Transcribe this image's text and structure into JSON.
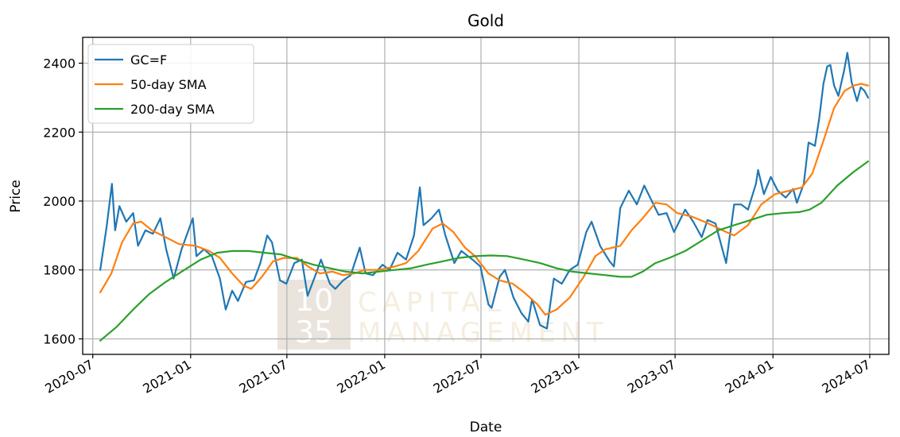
{
  "chart_data": {
    "type": "line",
    "title": "Gold",
    "xlabel": "Date",
    "ylabel": "Price",
    "x_tick_labels": [
      "2020-07",
      "2021-01",
      "2021-07",
      "2022-01",
      "2022-07",
      "2023-01",
      "2023-07",
      "2024-01",
      "2024-07"
    ],
    "y_ticks": [
      1600,
      1800,
      2000,
      2200,
      2400
    ],
    "xlim": [
      "2020-06-12",
      "2024-08-06"
    ],
    "ylim": [
      1555,
      2475
    ],
    "grid": true,
    "legend_position": "upper-left",
    "watermark": {
      "number": [
        "10",
        "35"
      ],
      "words": [
        "CAPITAL",
        "MANAGEMENT"
      ]
    },
    "series": [
      {
        "name": "GC=F",
        "color": "#1f77b4",
        "points": [
          [
            "2020-07-15",
            1800
          ],
          [
            "2020-07-27",
            1925
          ],
          [
            "2020-08-06",
            2050
          ],
          [
            "2020-08-12",
            1915
          ],
          [
            "2020-08-20",
            1985
          ],
          [
            "2020-09-02",
            1940
          ],
          [
            "2020-09-15",
            1965
          ],
          [
            "2020-09-24",
            1870
          ],
          [
            "2020-10-08",
            1915
          ],
          [
            "2020-10-22",
            1905
          ],
          [
            "2020-11-05",
            1950
          ],
          [
            "2020-11-16",
            1860
          ],
          [
            "2020-11-30",
            1775
          ],
          [
            "2020-12-15",
            1860
          ],
          [
            "2021-01-05",
            1950
          ],
          [
            "2021-01-12",
            1840
          ],
          [
            "2021-01-26",
            1860
          ],
          [
            "2021-02-10",
            1840
          ],
          [
            "2021-02-25",
            1775
          ],
          [
            "2021-03-08",
            1685
          ],
          [
            "2021-03-20",
            1740
          ],
          [
            "2021-03-31",
            1710
          ],
          [
            "2021-04-15",
            1765
          ],
          [
            "2021-04-30",
            1770
          ],
          [
            "2021-05-12",
            1820
          ],
          [
            "2021-05-25",
            1900
          ],
          [
            "2021-06-03",
            1880
          ],
          [
            "2021-06-18",
            1770
          ],
          [
            "2021-06-30",
            1760
          ],
          [
            "2021-07-15",
            1820
          ],
          [
            "2021-07-29",
            1830
          ],
          [
            "2021-08-09",
            1725
          ],
          [
            "2021-08-25",
            1790
          ],
          [
            "2021-09-03",
            1830
          ],
          [
            "2021-09-20",
            1760
          ],
          [
            "2021-09-30",
            1745
          ],
          [
            "2021-10-15",
            1770
          ],
          [
            "2021-10-29",
            1785
          ],
          [
            "2021-11-15",
            1865
          ],
          [
            "2021-11-26",
            1790
          ],
          [
            "2021-12-10",
            1785
          ],
          [
            "2021-12-28",
            1815
          ],
          [
            "2022-01-10",
            1800
          ],
          [
            "2022-01-25",
            1850
          ],
          [
            "2022-02-10",
            1830
          ],
          [
            "2022-02-25",
            1900
          ],
          [
            "2022-03-08",
            2040
          ],
          [
            "2022-03-15",
            1930
          ],
          [
            "2022-03-30",
            1950
          ],
          [
            "2022-04-13",
            1975
          ],
          [
            "2022-04-25",
            1900
          ],
          [
            "2022-05-12",
            1820
          ],
          [
            "2022-05-25",
            1855
          ],
          [
            "2022-06-15",
            1830
          ],
          [
            "2022-06-30",
            1810
          ],
          [
            "2022-07-15",
            1700
          ],
          [
            "2022-07-21",
            1690
          ],
          [
            "2022-08-05",
            1780
          ],
          [
            "2022-08-15",
            1800
          ],
          [
            "2022-08-31",
            1720
          ],
          [
            "2022-09-15",
            1675
          ],
          [
            "2022-09-28",
            1650
          ],
          [
            "2022-10-05",
            1715
          ],
          [
            "2022-10-20",
            1640
          ],
          [
            "2022-11-02",
            1630
          ],
          [
            "2022-11-15",
            1775
          ],
          [
            "2022-11-30",
            1760
          ],
          [
            "2022-12-15",
            1800
          ],
          [
            "2022-12-30",
            1815
          ],
          [
            "2023-01-15",
            1910
          ],
          [
            "2023-01-25",
            1940
          ],
          [
            "2023-02-10",
            1870
          ],
          [
            "2023-02-28",
            1825
          ],
          [
            "2023-03-08",
            1810
          ],
          [
            "2023-03-20",
            1980
          ],
          [
            "2023-04-05",
            2030
          ],
          [
            "2023-04-20",
            1990
          ],
          [
            "2023-05-04",
            2045
          ],
          [
            "2023-05-15",
            2010
          ],
          [
            "2023-05-31",
            1960
          ],
          [
            "2023-06-15",
            1965
          ],
          [
            "2023-06-29",
            1910
          ],
          [
            "2023-07-20",
            1975
          ],
          [
            "2023-08-04",
            1940
          ],
          [
            "2023-08-20",
            1895
          ],
          [
            "2023-08-31",
            1945
          ],
          [
            "2023-09-15",
            1935
          ],
          [
            "2023-09-28",
            1860
          ],
          [
            "2023-10-05",
            1820
          ],
          [
            "2023-10-20",
            1990
          ],
          [
            "2023-11-02",
            1990
          ],
          [
            "2023-11-15",
            1975
          ],
          [
            "2023-11-30",
            2050
          ],
          [
            "2023-12-04",
            2090
          ],
          [
            "2023-12-15",
            2020
          ],
          [
            "2023-12-28",
            2070
          ],
          [
            "2024-01-10",
            2030
          ],
          [
            "2024-01-25",
            2010
          ],
          [
            "2024-02-08",
            2035
          ],
          [
            "2024-02-15",
            1995
          ],
          [
            "2024-02-28",
            2050
          ],
          [
            "2024-03-08",
            2170
          ],
          [
            "2024-03-20",
            2160
          ],
          [
            "2024-03-28",
            2240
          ],
          [
            "2024-04-05",
            2340
          ],
          [
            "2024-04-12",
            2390
          ],
          [
            "2024-04-18",
            2395
          ],
          [
            "2024-04-25",
            2335
          ],
          [
            "2024-05-03",
            2305
          ],
          [
            "2024-05-14",
            2380
          ],
          [
            "2024-05-20",
            2430
          ],
          [
            "2024-05-28",
            2345
          ],
          [
            "2024-06-07",
            2290
          ],
          [
            "2024-06-14",
            2330
          ],
          [
            "2024-06-21",
            2320
          ],
          [
            "2024-06-28",
            2300
          ]
        ]
      },
      {
        "name": "50-day SMA",
        "color": "#ff7f0e",
        "points": [
          [
            "2020-07-15",
            1735
          ],
          [
            "2020-08-05",
            1790
          ],
          [
            "2020-08-25",
            1880
          ],
          [
            "2020-09-15",
            1935
          ],
          [
            "2020-09-30",
            1940
          ],
          [
            "2020-10-20",
            1915
          ],
          [
            "2020-11-15",
            1895
          ],
          [
            "2020-12-10",
            1875
          ],
          [
            "2021-01-10",
            1870
          ],
          [
            "2021-02-05",
            1855
          ],
          [
            "2021-02-25",
            1835
          ],
          [
            "2021-03-20",
            1790
          ],
          [
            "2021-04-10",
            1755
          ],
          [
            "2021-04-25",
            1745
          ],
          [
            "2021-05-15",
            1780
          ],
          [
            "2021-06-05",
            1825
          ],
          [
            "2021-06-25",
            1835
          ],
          [
            "2021-07-20",
            1835
          ],
          [
            "2021-08-10",
            1810
          ],
          [
            "2021-09-01",
            1790
          ],
          [
            "2021-09-25",
            1795
          ],
          [
            "2021-10-15",
            1785
          ],
          [
            "2021-11-05",
            1790
          ],
          [
            "2021-11-25",
            1800
          ],
          [
            "2021-12-20",
            1800
          ],
          [
            "2022-01-20",
            1810
          ],
          [
            "2022-02-10",
            1820
          ],
          [
            "2022-03-05",
            1855
          ],
          [
            "2022-04-01",
            1920
          ],
          [
            "2022-04-20",
            1935
          ],
          [
            "2022-05-10",
            1910
          ],
          [
            "2022-06-01",
            1865
          ],
          [
            "2022-06-20",
            1840
          ],
          [
            "2022-07-15",
            1790
          ],
          [
            "2022-08-05",
            1770
          ],
          [
            "2022-08-30",
            1760
          ],
          [
            "2022-09-20",
            1735
          ],
          [
            "2022-10-15",
            1700
          ],
          [
            "2022-10-30",
            1670
          ],
          [
            "2022-11-20",
            1685
          ],
          [
            "2022-12-15",
            1720
          ],
          [
            "2023-01-10",
            1780
          ],
          [
            "2023-02-01",
            1840
          ],
          [
            "2023-02-20",
            1860
          ],
          [
            "2023-03-20",
            1870
          ],
          [
            "2023-04-10",
            1915
          ],
          [
            "2023-05-01",
            1950
          ],
          [
            "2023-05-25",
            1995
          ],
          [
            "2023-06-15",
            1990
          ],
          [
            "2023-07-05",
            1965
          ],
          [
            "2023-08-01",
            1955
          ],
          [
            "2023-08-25",
            1940
          ],
          [
            "2023-09-15",
            1925
          ],
          [
            "2023-10-05",
            1910
          ],
          [
            "2023-10-20",
            1900
          ],
          [
            "2023-11-15",
            1930
          ],
          [
            "2023-12-10",
            1990
          ],
          [
            "2024-01-05",
            2020
          ],
          [
            "2024-02-01",
            2030
          ],
          [
            "2024-02-25",
            2040
          ],
          [
            "2024-03-15",
            2080
          ],
          [
            "2024-04-05",
            2175
          ],
          [
            "2024-04-25",
            2270
          ],
          [
            "2024-05-15",
            2320
          ],
          [
            "2024-06-01",
            2335
          ],
          [
            "2024-06-15",
            2340
          ],
          [
            "2024-06-28",
            2335
          ]
        ]
      },
      {
        "name": "200-day SMA",
        "color": "#2ca02c",
        "points": [
          [
            "2020-07-15",
            1595
          ],
          [
            "2020-08-15",
            1635
          ],
          [
            "2020-09-15",
            1685
          ],
          [
            "2020-10-15",
            1730
          ],
          [
            "2020-11-15",
            1765
          ],
          [
            "2020-12-15",
            1795
          ],
          [
            "2021-01-20",
            1830
          ],
          [
            "2021-02-20",
            1850
          ],
          [
            "2021-03-20",
            1855
          ],
          [
            "2021-04-20",
            1855
          ],
          [
            "2021-05-20",
            1850
          ],
          [
            "2021-06-20",
            1845
          ],
          [
            "2021-07-20",
            1830
          ],
          [
            "2021-08-20",
            1815
          ],
          [
            "2021-09-20",
            1805
          ],
          [
            "2021-10-20",
            1795
          ],
          [
            "2021-11-20",
            1790
          ],
          [
            "2021-12-20",
            1795
          ],
          [
            "2022-01-20",
            1800
          ],
          [
            "2022-02-20",
            1805
          ],
          [
            "2022-03-20",
            1815
          ],
          [
            "2022-04-20",
            1825
          ],
          [
            "2022-05-20",
            1835
          ],
          [
            "2022-06-20",
            1840
          ],
          [
            "2022-07-20",
            1842
          ],
          [
            "2022-08-20",
            1840
          ],
          [
            "2022-09-20",
            1830
          ],
          [
            "2022-10-20",
            1820
          ],
          [
            "2022-11-20",
            1805
          ],
          [
            "2022-12-20",
            1795
          ],
          [
            "2023-01-20",
            1790
          ],
          [
            "2023-02-20",
            1785
          ],
          [
            "2023-03-20",
            1780
          ],
          [
            "2023-04-10",
            1780
          ],
          [
            "2023-05-01",
            1795
          ],
          [
            "2023-05-25",
            1820
          ],
          [
            "2023-06-20",
            1835
          ],
          [
            "2023-07-20",
            1855
          ],
          [
            "2023-08-20",
            1885
          ],
          [
            "2023-09-20",
            1915
          ],
          [
            "2023-10-20",
            1930
          ],
          [
            "2023-11-20",
            1945
          ],
          [
            "2023-12-20",
            1960
          ],
          [
            "2024-01-20",
            1965
          ],
          [
            "2024-02-20",
            1968
          ],
          [
            "2024-03-10",
            1975
          ],
          [
            "2024-04-01",
            1995
          ],
          [
            "2024-05-01",
            2045
          ],
          [
            "2024-06-01",
            2085
          ],
          [
            "2024-06-28",
            2115
          ]
        ]
      }
    ]
  }
}
